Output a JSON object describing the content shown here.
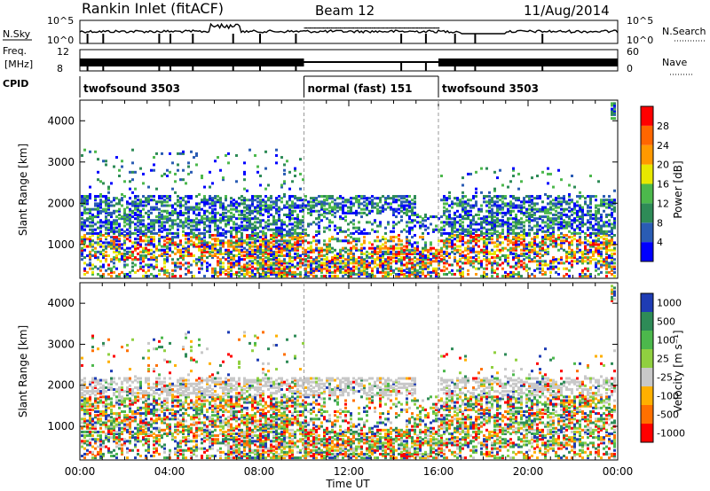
{
  "header": {
    "title": "Rankin Inlet (fitACF)",
    "beam": "Beam 12",
    "date": "11/Aug/2014"
  },
  "strips": {
    "nsky_label": "N.Sky",
    "nsky_ticks": [
      "10^5",
      "10^0"
    ],
    "nsearch_label": "N.Search",
    "nsearch_ticks": [
      "10^5",
      "10^0"
    ],
    "freq_label": "Freq.",
    "freq_unit": "[MHz]",
    "freq_ticks": [
      "12",
      "8"
    ],
    "nave_label": "Nave",
    "nave_ticks": [
      "60",
      "0"
    ],
    "cpid_label": "CPID",
    "cpid_segments": [
      {
        "label": "twofsound 3503",
        "start_hour": 0,
        "end_hour": 10
      },
      {
        "label": "normal (fast) 151",
        "start_hour": 10,
        "end_hour": 16
      },
      {
        "label": "twofsound 3503",
        "start_hour": 16,
        "end_hour": 24
      }
    ]
  },
  "chart_data": [
    {
      "type": "heatmap",
      "title": "",
      "xlabel": "Time UT",
      "ylabel": "Slant Range [km]",
      "xlim": [
        0,
        24
      ],
      "ylim": [
        180,
        4500
      ],
      "xticks": [
        "00:00",
        "04:00",
        "08:00",
        "12:00",
        "16:00",
        "20:00",
        "00:00"
      ],
      "yticks": [
        1000,
        2000,
        3000,
        4000
      ],
      "colorbar": {
        "label": "Power [dB]",
        "ticks": [
          "4",
          "8",
          "12",
          "16",
          "20",
          "24",
          "28"
        ],
        "colors": [
          "#0000ff",
          "#2a5cb4",
          "#2e8b57",
          "#4cb84c",
          "#e8e800",
          "#ff9900",
          "#ff6600",
          "#ff0000"
        ]
      },
      "features": [
        {
          "band": "scatter 600-2100 km",
          "start_hour": 0,
          "end_hour": 10
        },
        {
          "band": "strong echoes 300-1200 km",
          "start_hour": 0,
          "end_hour": 10
        },
        {
          "band": "scatter 1700-2100 km",
          "start_hour": 10.5,
          "end_hour": 15
        },
        {
          "band": "strong echoes 200-800 km",
          "start_hour": 10,
          "end_hour": 18
        },
        {
          "band": "scatter 500-2100 km",
          "start_hour": 17,
          "end_hour": 24
        }
      ]
    },
    {
      "type": "heatmap",
      "title": "",
      "xlabel": "Time UT",
      "ylabel": "Slant Range [km]",
      "xlim": [
        0,
        24
      ],
      "ylim": [
        180,
        4500
      ],
      "xticks": [
        "00:00",
        "04:00",
        "08:00",
        "12:00",
        "16:00",
        "20:00",
        "00:00"
      ],
      "yticks": [
        1000,
        2000,
        3000,
        4000
      ],
      "colorbar": {
        "label": "Velocity [m s⁻¹]",
        "ticks": [
          "1000",
          "500",
          "100",
          "25",
          "-25",
          "-100",
          "-500",
          "-1000"
        ],
        "colors": [
          "#1e3cb4",
          "#2e8b57",
          "#4cb84c",
          "#90d040",
          "#c8c8c8",
          "#ffb000",
          "#ff7000",
          "#ff0000"
        ]
      }
    }
  ]
}
